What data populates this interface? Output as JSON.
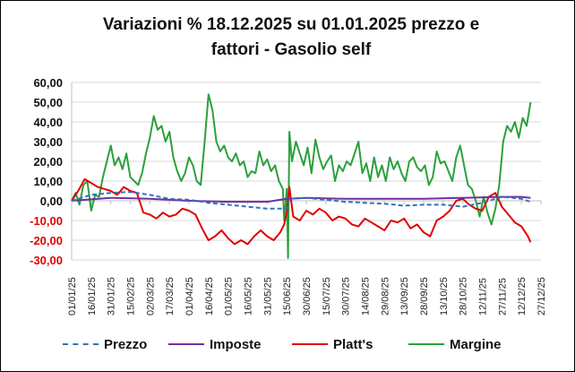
{
  "title_line1": "Variazioni % 18.12.2025 su 01.01.2025 prezzo e",
  "title_line2": "fattori - Gasolio self",
  "chart_data": {
    "type": "line",
    "title": "Variazioni % 18.12.2025 su 01.01.2025 prezzo e fattori - Gasolio self",
    "ylim": [
      -30,
      60
    ],
    "y_ticks": [
      "60,00",
      "50,00",
      "40,00",
      "30,00",
      "20,00",
      "10,00",
      "0,00",
      "-10,00",
      "-20,00",
      "-30,00"
    ],
    "x_ticks": [
      "01/01/25",
      "16/01/25",
      "31/01/25",
      "15/02/25",
      "02/03/25",
      "17/03/25",
      "01/04/25",
      "16/04/25",
      "01/05/25",
      "16/05/25",
      "31/05/25",
      "15/06/25",
      "30/06/25",
      "15/07/25",
      "30/07/25",
      "14/08/25",
      "29/08/25",
      "13/09/25",
      "28/09/25",
      "13/10/25",
      "28/10/25",
      "12/11/25",
      "27/11/25",
      "12/12/25",
      "27/12/25"
    ],
    "x_range_days": [
      0,
      360
    ],
    "grid": "horizontal",
    "legend_position": "bottom",
    "series": [
      {
        "name": "Prezzo",
        "color": "#2E75B6",
        "style": "dashed",
        "x": [
          0,
          15,
          30,
          45,
          60,
          75,
          90,
          105,
          120,
          135,
          150,
          165,
          167,
          180,
          195,
          210,
          225,
          240,
          255,
          270,
          285,
          300,
          315,
          330,
          345,
          352
        ],
        "values": [
          0,
          3,
          4,
          4.5,
          3,
          1,
          0.5,
          -1,
          -2,
          -3,
          -4,
          -4,
          1,
          1.5,
          0.5,
          -0.5,
          -1,
          -1.5,
          -2.5,
          -2,
          -2,
          -3,
          -1,
          2,
          1,
          -0.5
        ]
      },
      {
        "name": "Imposte",
        "color": "#7030A0",
        "style": "solid",
        "x": [
          0,
          30,
          60,
          90,
          120,
          150,
          165,
          180,
          210,
          240,
          270,
          300,
          330,
          345,
          352
        ],
        "values": [
          0,
          1.5,
          1,
          0,
          -0.5,
          -0.5,
          1,
          1.5,
          1,
          1,
          1,
          1.5,
          2,
          2,
          1.5
        ]
      },
      {
        "name": "Platt's",
        "color": "#E00000",
        "style": "solid",
        "x": [
          0,
          5,
          10,
          15,
          20,
          25,
          30,
          35,
          40,
          45,
          50,
          55,
          60,
          65,
          70,
          75,
          80,
          85,
          90,
          95,
          100,
          105,
          110,
          115,
          120,
          125,
          130,
          135,
          140,
          145,
          150,
          155,
          160,
          163,
          165,
          167,
          170,
          175,
          180,
          185,
          190,
          195,
          200,
          205,
          210,
          215,
          220,
          225,
          230,
          235,
          240,
          245,
          250,
          255,
          260,
          265,
          270,
          275,
          280,
          285,
          290,
          295,
          300,
          305,
          310,
          315,
          320,
          325,
          330,
          335,
          340,
          345,
          350,
          352
        ],
        "values": [
          0,
          5,
          11,
          9,
          7,
          6,
          5,
          3,
          7,
          5,
          4,
          -6,
          -7,
          -9,
          -6,
          -8,
          -7,
          -4,
          -5,
          -7,
          -14,
          -20,
          -18,
          -15,
          -19,
          -22,
          -20,
          -22,
          -18,
          -15,
          -18,
          -20,
          -16,
          -12,
          -6,
          7,
          -8,
          -10,
          -5,
          -7,
          -4,
          -6,
          -10,
          -8,
          -9,
          -12,
          -13,
          -9,
          -11,
          -13,
          -15,
          -10,
          -11,
          -9,
          -14,
          -12,
          -16,
          -18,
          -10,
          -8,
          -5,
          0,
          1,
          -2,
          -4,
          -5,
          2,
          4,
          -3,
          -7,
          -11,
          -13,
          -18,
          -21
        ]
      },
      {
        "name": "Margine",
        "color": "#2BA03C",
        "style": "solid",
        "x": [
          0,
          3,
          6,
          9,
          12,
          15,
          18,
          21,
          24,
          27,
          30,
          33,
          36,
          39,
          42,
          45,
          48,
          51,
          54,
          57,
          60,
          63,
          66,
          69,
          72,
          75,
          78,
          81,
          84,
          87,
          90,
          93,
          96,
          99,
          102,
          105,
          108,
          111,
          114,
          117,
          120,
          123,
          126,
          129,
          132,
          135,
          138,
          141,
          144,
          147,
          150,
          153,
          156,
          159,
          162,
          163,
          165,
          166,
          167,
          169,
          172,
          175,
          178,
          181,
          184,
          187,
          190,
          193,
          196,
          199,
          202,
          205,
          208,
          211,
          214,
          217,
          220,
          223,
          226,
          229,
          232,
          235,
          238,
          241,
          244,
          247,
          250,
          253,
          256,
          259,
          262,
          265,
          268,
          271,
          274,
          277,
          280,
          283,
          286,
          289,
          292,
          295,
          298,
          301,
          304,
          307,
          310,
          313,
          316,
          319,
          322,
          325,
          328,
          331,
          334,
          337,
          340,
          343,
          346,
          349,
          352
        ],
        "values": [
          0,
          4,
          -2,
          8,
          10,
          -5,
          3,
          2,
          12,
          20,
          28,
          18,
          22,
          16,
          24,
          12,
          10,
          8,
          14,
          24,
          32,
          43,
          36,
          38,
          30,
          35,
          22,
          15,
          10,
          14,
          22,
          18,
          10,
          8,
          30,
          54,
          46,
          30,
          25,
          28,
          22,
          20,
          24,
          18,
          20,
          12,
          15,
          14,
          25,
          18,
          21,
          15,
          18,
          10,
          6,
          -10,
          6,
          -29,
          35,
          20,
          30,
          24,
          18,
          27,
          14,
          31,
          22,
          16,
          20,
          23,
          10,
          18,
          15,
          20,
          18,
          24,
          30,
          14,
          19,
          10,
          22,
          12,
          18,
          10,
          22,
          16,
          20,
          14,
          10,
          20,
          22,
          17,
          15,
          18,
          8,
          12,
          25,
          19,
          20,
          15,
          10,
          22,
          28,
          18,
          8,
          6,
          0,
          -8,
          2,
          -6,
          -12,
          -4,
          8,
          30,
          38,
          35,
          40,
          32,
          42,
          38,
          50
        ]
      }
    ]
  }
}
